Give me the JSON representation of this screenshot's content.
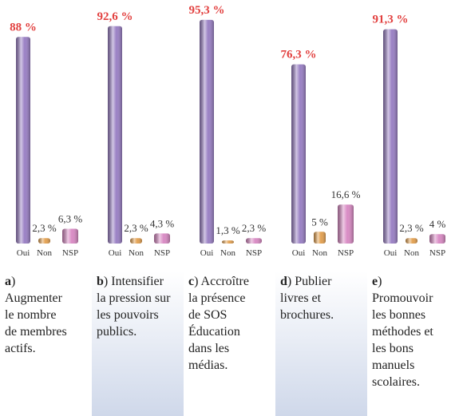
{
  "chart_data": [
    {
      "type": "bar",
      "letter": "a",
      "caption": [
        ")",
        "Augmenter",
        "le nombre",
        "de membres",
        "actifs."
      ],
      "categories": [
        "Oui",
        "Non",
        "NSP"
      ],
      "values": [
        88,
        2.3,
        6.3
      ],
      "value_labels": [
        "88 %",
        "2,3 %",
        "6,3 %"
      ],
      "colors": [
        "#9a80c4",
        "#e3a152",
        "#d98bc4"
      ],
      "ylim": [
        0,
        100
      ]
    },
    {
      "type": "bar",
      "letter": "b",
      "caption": [
        ") Intensifier",
        "la pression sur",
        "les pouvoirs",
        "publics."
      ],
      "categories": [
        "Oui",
        "Non",
        "NSP"
      ],
      "values": [
        92.6,
        2.3,
        4.3
      ],
      "value_labels": [
        "92,6 %",
        "2,3 %",
        "4,3 %"
      ],
      "colors": [
        "#9a80c4",
        "#e3a152",
        "#d98bc4"
      ],
      "ylim": [
        0,
        100
      ]
    },
    {
      "type": "bar",
      "letter": "c",
      "caption": [
        ") Accroître",
        "la présence",
        "de SOS",
        "Éducation",
        "dans les",
        "médias."
      ],
      "categories": [
        "Oui",
        "Non",
        "NSP"
      ],
      "values": [
        95.3,
        1.3,
        2.3
      ],
      "value_labels": [
        "95,3 %",
        "1,3 %",
        "2,3 %"
      ],
      "colors": [
        "#9a80c4",
        "#e3a152",
        "#d98bc4"
      ],
      "ylim": [
        0,
        100
      ]
    },
    {
      "type": "bar",
      "letter": "d",
      "caption": [
        ") Publier",
        "livres et",
        "brochures."
      ],
      "categories": [
        "Oui",
        "Non",
        "NSP"
      ],
      "values": [
        76.3,
        5,
        16.6
      ],
      "value_labels": [
        "76,3 %",
        "5 %",
        "16,6 %"
      ],
      "colors": [
        "#9a80c4",
        "#e3a152",
        "#d98bc4"
      ],
      "ylim": [
        0,
        100
      ]
    },
    {
      "type": "bar",
      "letter": "e",
      "caption": [
        ")",
        "Promouvoir",
        "les bonnes",
        "méthodes et",
        "les bons",
        "manuels",
        "scolaires."
      ],
      "categories": [
        "Oui",
        "Non",
        "NSP"
      ],
      "values": [
        91.3,
        2.3,
        4
      ],
      "value_labels": [
        "91,3 %",
        "2,3 %",
        "4 %"
      ],
      "colors": [
        "#9a80c4",
        "#e3a152",
        "#d98bc4"
      ],
      "ylim": [
        0,
        100
      ]
    }
  ]
}
